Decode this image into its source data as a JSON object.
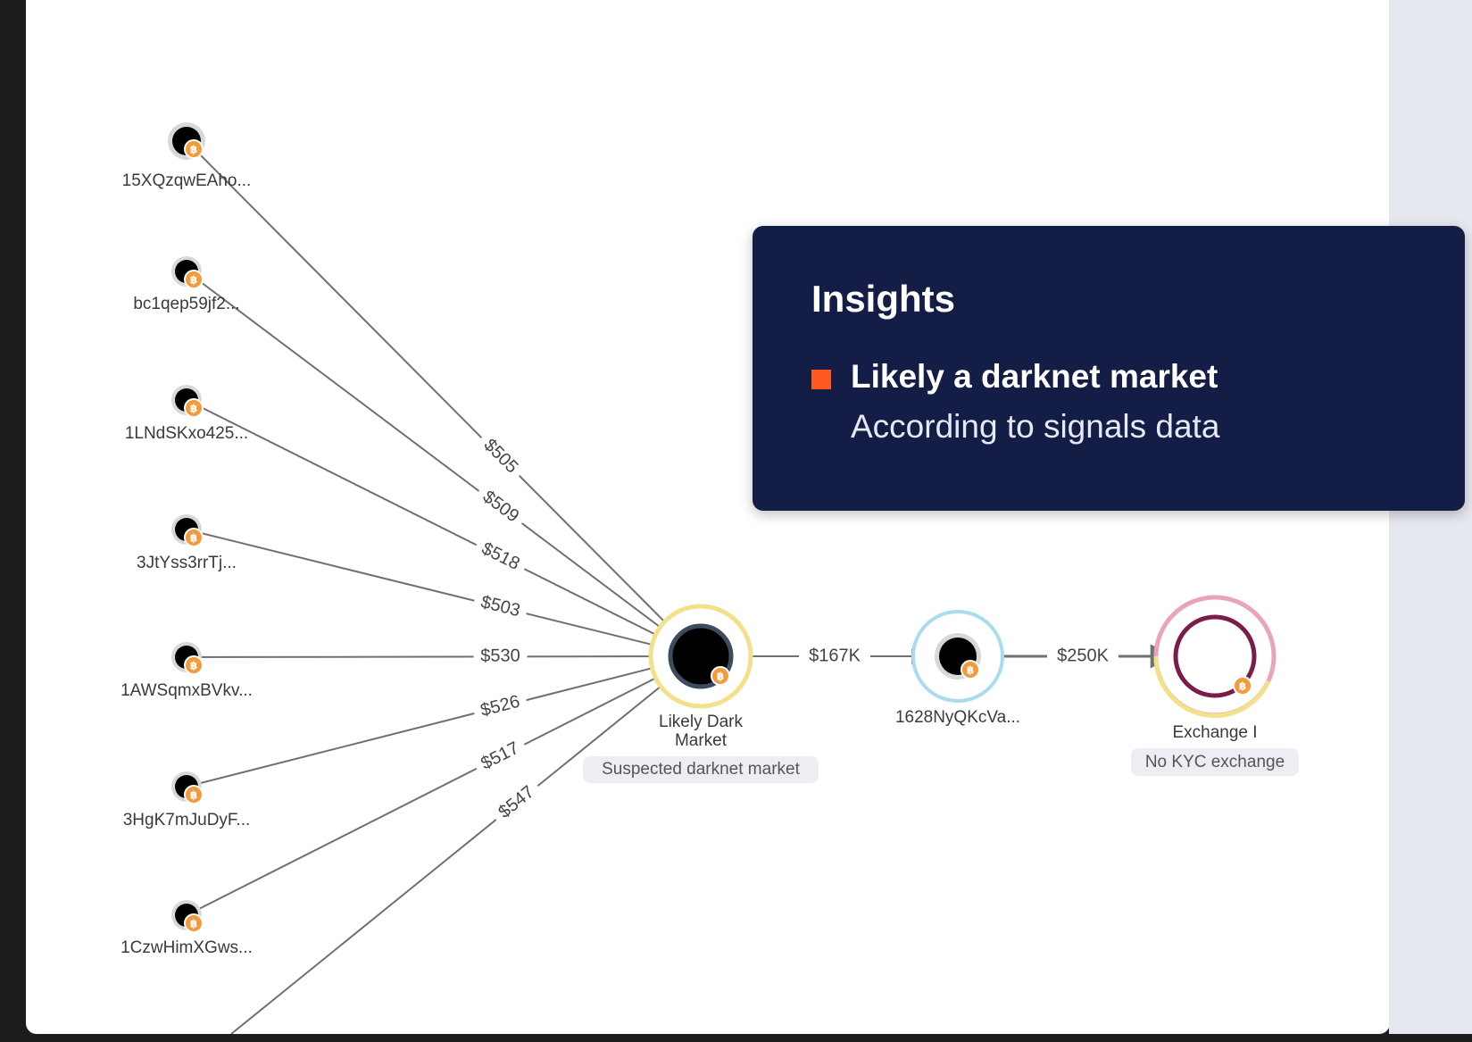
{
  "insights": {
    "title": "Insights",
    "items": [
      {
        "heading": "Likely a darknet market",
        "detail": "According to signals data",
        "marker_color": "#ff5a1f"
      }
    ]
  },
  "graph": {
    "coin_badge_icon": "bitcoin-icon",
    "source_nodes": [
      {
        "id": "src1",
        "label": "15XQzqwEAho...",
        "amount": "$505"
      },
      {
        "id": "src2",
        "label": "bc1qep59jf2...",
        "amount": "$509"
      },
      {
        "id": "src3",
        "label": "1LNdSKxo425...",
        "amount": "$518"
      },
      {
        "id": "src4",
        "label": "3JtYss3rrTj...",
        "amount": "$503"
      },
      {
        "id": "src5",
        "label": "1AWSqmxBVkv...",
        "amount": "$530"
      },
      {
        "id": "src6",
        "label": "3HgK7mJuDyF...",
        "amount": "$526"
      },
      {
        "id": "src7",
        "label": "1CzwHimXGws...",
        "amount": "$517"
      },
      {
        "id": "src8",
        "label": "",
        "amount": "$547"
      }
    ],
    "market_node": {
      "label_line1": "Likely Dark",
      "label_line2": "Market",
      "tag": "Suspected darknet market",
      "ring_color": "#f2e08a"
    },
    "middle_node": {
      "label": "1628NyQKcVa...",
      "ring_color": "#a9dcee"
    },
    "exchange_node": {
      "label": "Exchange I",
      "tag": "No KYC exchange",
      "ring_color": "#e9a5b5",
      "inner_color": "#7a1d4b"
    },
    "flow_edges": [
      {
        "from": "market",
        "to": "middle",
        "amount": "$167K"
      },
      {
        "from": "middle",
        "to": "exchange",
        "amount": "$250K"
      }
    ]
  },
  "colors": {
    "badge": "#f29a3c",
    "edge": "#707070",
    "card": "#141d45"
  }
}
